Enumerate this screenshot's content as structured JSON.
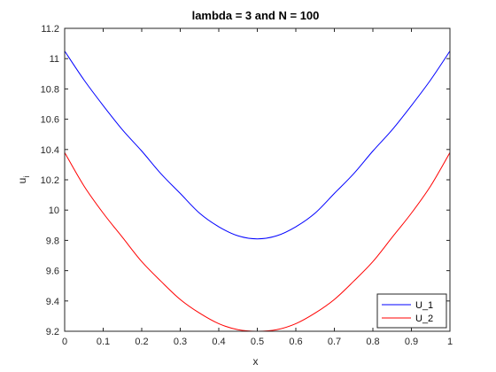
{
  "chart_data": {
    "type": "line",
    "title": "lambda = 3 and N = 100",
    "xlabel": "x",
    "ylabel": "u",
    "ylabel_subscript": "i",
    "xlim": [
      0,
      1
    ],
    "ylim": [
      9.2,
      11.2
    ],
    "xticks": [
      0,
      0.1,
      0.2,
      0.3,
      0.4,
      0.5,
      0.6,
      0.7,
      0.8,
      0.9,
      1
    ],
    "yticks": [
      9.2,
      9.4,
      9.6,
      9.8,
      10,
      10.2,
      10.4,
      10.6,
      10.8,
      11,
      11.2
    ],
    "grid": false,
    "legend_position": "bottom-right",
    "series": [
      {
        "name": "U_1",
        "color": "#0000ff",
        "x": [
          0,
          0.05,
          0.1,
          0.15,
          0.2,
          0.25,
          0.3,
          0.35,
          0.4,
          0.45,
          0.5,
          0.55,
          0.6,
          0.65,
          0.7,
          0.75,
          0.8,
          0.85,
          0.9,
          0.95,
          1
        ],
        "y": [
          11.05,
          10.86,
          10.69,
          10.53,
          10.39,
          10.24,
          10.11,
          9.98,
          9.89,
          9.83,
          9.81,
          9.83,
          9.89,
          9.98,
          10.11,
          10.24,
          10.39,
          10.53,
          10.69,
          10.86,
          11.05
        ]
      },
      {
        "name": "U_2",
        "color": "#ff0000",
        "x": [
          0,
          0.05,
          0.1,
          0.15,
          0.2,
          0.25,
          0.3,
          0.35,
          0.4,
          0.45,
          0.5,
          0.55,
          0.6,
          0.65,
          0.7,
          0.75,
          0.8,
          0.85,
          0.9,
          0.95,
          1
        ],
        "y": [
          10.38,
          10.16,
          9.98,
          9.82,
          9.66,
          9.53,
          9.41,
          9.32,
          9.25,
          9.21,
          9.2,
          9.21,
          9.25,
          9.32,
          9.41,
          9.53,
          9.66,
          9.82,
          9.98,
          10.16,
          10.38
        ]
      }
    ]
  }
}
